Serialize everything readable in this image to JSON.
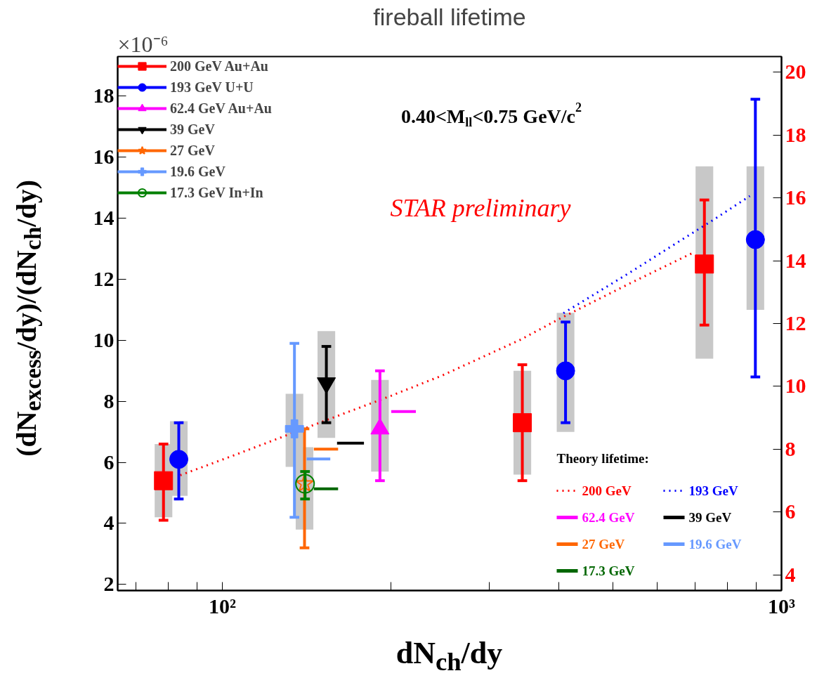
{
  "chart_data": {
    "type": "scatter",
    "title": "fireball lifetime",
    "xlabel": "dN$_{ch}$/dy",
    "ylabel": "(dN$_{excess}$/dy)/(dN$_{ch}$/dy)",
    "legend_title": "Theory lifetime:",
    "annotations": [
      "×10⁻⁶",
      "0.40<M$_{ll}$<0.75 GeV/c$^{2}$",
      "STAR preliminary"
    ],
    "log": "x",
    "grid": false,
    "legend": "top left",
    "xlim": [
      65,
      1000
    ],
    "ylim": [
      1.8,
      19.3
    ],
    "y2lim": [
      3.5,
      20.5
    ],
    "xticks": [
      {
        "value": 70,
        "label": null
      },
      {
        "value": 80,
        "label": null
      },
      {
        "value": 90,
        "label": null
      },
      {
        "value": 100,
        "label": "10²"
      },
      {
        "value": 200,
        "label": null
      },
      {
        "value": 300,
        "label": null
      },
      {
        "value": 400,
        "label": null
      },
      {
        "value": 500,
        "label": null
      },
      {
        "value": 600,
        "label": null
      },
      {
        "value": 700,
        "label": null
      },
      {
        "value": 800,
        "label": null
      },
      {
        "value": 900,
        "label": null
      },
      {
        "value": 1000,
        "label": "10³"
      }
    ],
    "yticks": [
      2,
      4,
      6,
      8,
      10,
      12,
      14,
      16,
      18
    ],
    "y2ticks": [
      4,
      6,
      8,
      10,
      12,
      14,
      16,
      18,
      20
    ],
    "series": [
      {
        "type": "bar",
        "color": "#c8c8c8",
        "x": [
          78.5,
          83.6,
          134.6,
          140.3,
          153.5,
          191.4,
          344,
          411,
          728,
          898
        ],
        "base": [
          4.2,
          4.9,
          5.85,
          3.8,
          6.8,
          5.7,
          5.6,
          7.0,
          9.4,
          11.0
        ],
        "values": [
          2.4,
          2.45,
          2.4,
          2.7,
          3.5,
          3.0,
          3.4,
          3.9,
          6.3,
          4.7
        ]
      },
      {
        "type": "line",
        "axis": "y2",
        "name": "200 GeV",
        "color": "#ff0000",
        "line_style": "dotted",
        "x": [
          84.1,
          104.4,
          130.2,
          160.8,
          200.4,
          247.6,
          341.7,
          403.9,
          538.7,
          695.9
        ],
        "values": [
          7.17,
          7.79,
          8.44,
          9.06,
          9.7,
          10.35,
          11.49,
          12.18,
          13.3,
          14.26
        ]
      },
      {
        "type": "line",
        "axis": "y2",
        "name": "193 GeV",
        "color": "#0000ff",
        "line_style": "dotted",
        "x": [
          407.4,
          528.5,
          753.6,
          877.8
        ],
        "values": [
          12.33,
          13.56,
          15.29,
          16.06
        ]
      },
      {
        "type": "line",
        "axis": "y2",
        "name": "62.4 GeV",
        "color": "#ff00ff",
        "line_style": "solid",
        "x": [
          200.5,
          221.9
        ],
        "values": [
          9.2,
          9.2
        ]
      },
      {
        "type": "line",
        "axis": "y2",
        "name": "39 GeV",
        "color": "#000000",
        "line_style": "solid",
        "x": [
          160.4,
          179.2
        ],
        "values": [
          8.19,
          8.19
        ]
      },
      {
        "type": "line",
        "axis": "y2",
        "name": "27 GeV",
        "color": "#ff6600",
        "line_style": "solid",
        "x": [
          145.8,
          161.1
        ],
        "values": [
          8.0,
          8.0
        ]
      },
      {
        "type": "line",
        "axis": "y2",
        "name": "19.6 GeV",
        "color": "#6699ff",
        "line_style": "solid",
        "x": [
          141.6,
          156.0
        ],
        "values": [
          7.69,
          7.69
        ]
      },
      {
        "type": "line",
        "axis": "y2",
        "name": "17.3 GeV",
        "color": "#006600",
        "line_style": "solid",
        "x": [
          145.8,
          161.1
        ],
        "values": [
          6.74,
          6.74
        ]
      },
      {
        "name": "200 GeV Au+Au",
        "color": "#ff0000",
        "marker": "square",
        "x": [
          78.5,
          344,
          728
        ],
        "values": [
          5.4,
          7.3,
          12.5
        ],
        "errors": [
          [
            4.1,
            6.6
          ],
          [
            5.4,
            9.2
          ],
          [
            10.5,
            14.6
          ]
        ]
      },
      {
        "name": "193 GeV U+U",
        "color": "#0000ff",
        "marker": "circle",
        "x": [
          83.6,
          411,
          898
        ],
        "values": [
          6.1,
          9.0,
          13.3
        ],
        "errors": [
          [
            4.8,
            7.3
          ],
          [
            7.3,
            10.6
          ],
          [
            8.8,
            17.9
          ]
        ]
      },
      {
        "name": "62.4 GeV Au+Au",
        "color": "#ff00ff",
        "marker": "triangle",
        "x": [
          191.4
        ],
        "values": [
          7.1
        ],
        "errors": [
          [
            5.4,
            9.0
          ]
        ]
      },
      {
        "name": "39 GeV",
        "color": "#000000",
        "marker": "triangle_down",
        "x": [
          153.5
        ],
        "values": [
          8.6
        ],
        "errors": [
          [
            7.3,
            9.8
          ]
        ]
      },
      {
        "name": "27 GeV",
        "color": "#ff6600",
        "marker": "star",
        "x": [
          140.3
        ],
        "values": [
          5.3
        ],
        "errors": [
          [
            3.2,
            7.1
          ]
        ]
      },
      {
        "name": "19.6 GeV",
        "color": "#6699ff",
        "marker": "cross",
        "x": [
          134.6
        ],
        "values": [
          7.1
        ],
        "errors": [
          [
            4.2,
            9.9
          ]
        ]
      },
      {
        "name": "17.3 GeV In+In",
        "color": "#008000",
        "marker": "circle_open",
        "x": [
          140.6
        ],
        "values": [
          5.3
        ],
        "errors": [
          [
            4.8,
            5.7
          ]
        ]
      }
    ]
  }
}
